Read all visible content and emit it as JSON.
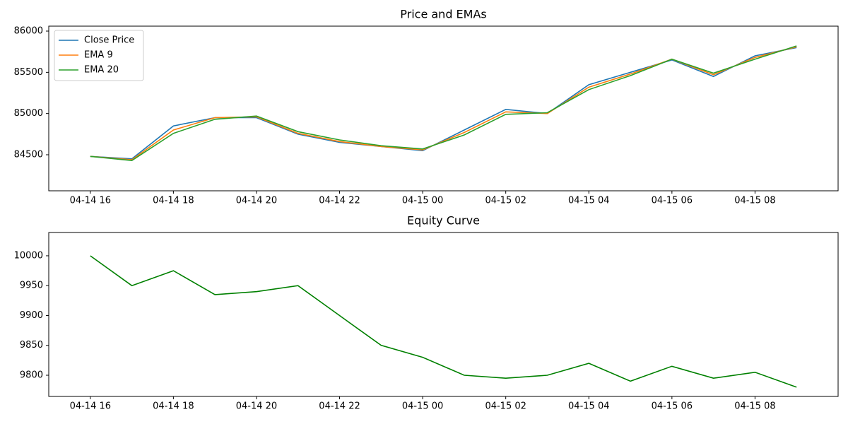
{
  "chart_data": [
    {
      "type": "line",
      "title": "Price and EMAs",
      "x": [
        "04-14 16",
        "04-14 17",
        "04-14 18",
        "04-14 19",
        "04-14 20",
        "04-14 21",
        "04-14 22",
        "04-14 23",
        "04-15 00",
        "04-15 01",
        "04-15 02",
        "04-15 03",
        "04-15 04",
        "04-15 05",
        "04-15 06",
        "04-15 07",
        "04-15 08",
        "04-15 09"
      ],
      "series": [
        {
          "name": "Close Price",
          "color": "#1f77b4",
          "values": [
            84480,
            84450,
            84850,
            84950,
            84950,
            84750,
            84650,
            84600,
            84550,
            84800,
            85050,
            85000,
            85350,
            85500,
            85650,
            85450,
            85700,
            85800
          ]
        },
        {
          "name": "EMA 9",
          "color": "#ff7f0e",
          "values": [
            84480,
            84440,
            84800,
            84950,
            84960,
            84760,
            84660,
            84600,
            84560,
            84770,
            85020,
            85000,
            85320,
            85480,
            85660,
            85470,
            85680,
            85810
          ]
        },
        {
          "name": "EMA 20",
          "color": "#2ca02c",
          "values": [
            84480,
            84430,
            84760,
            84930,
            84970,
            84780,
            84680,
            84610,
            84570,
            84740,
            84990,
            85010,
            85290,
            85460,
            85660,
            85490,
            85660,
            85820
          ]
        }
      ],
      "xlim": [
        "04-14 15",
        "04-15 10"
      ],
      "xticks": [
        "04-14 16",
        "04-14 18",
        "04-14 20",
        "04-14 22",
        "04-15 00",
        "04-15 02",
        "04-15 04",
        "04-15 06",
        "04-15 08"
      ],
      "ylim": [
        84063,
        86060
      ],
      "yticks": [
        84500,
        85000,
        85500,
        86000
      ],
      "legend": "upper left"
    },
    {
      "type": "line",
      "title": "Equity Curve",
      "x": [
        "04-14 16",
        "04-14 17",
        "04-14 18",
        "04-14 19",
        "04-14 20",
        "04-14 21",
        "04-14 22",
        "04-14 23",
        "04-15 00",
        "04-15 01",
        "04-15 02",
        "04-15 03",
        "04-15 04",
        "04-15 05",
        "04-15 06",
        "04-15 07",
        "04-15 08",
        "04-15 09"
      ],
      "series": [
        {
          "color": "#008000",
          "values": [
            10000,
            9950,
            9975,
            9935,
            9940,
            9950,
            9900,
            9850,
            9830,
            9800,
            9795,
            9800,
            9820,
            9790,
            9815,
            9795,
            9805,
            9780
          ]
        }
      ],
      "xlim": [
        "04-14 15",
        "04-15 10"
      ],
      "xticks": [
        "04-14 16",
        "04-14 18",
        "04-14 20",
        "04-14 22",
        "04-15 00",
        "04-15 02",
        "04-15 04",
        "04-15 06",
        "04-15 08"
      ],
      "ylim": [
        9764.5,
        10039
      ],
      "yticks": [
        9800,
        9850,
        9900,
        9950,
        10000
      ]
    }
  ]
}
